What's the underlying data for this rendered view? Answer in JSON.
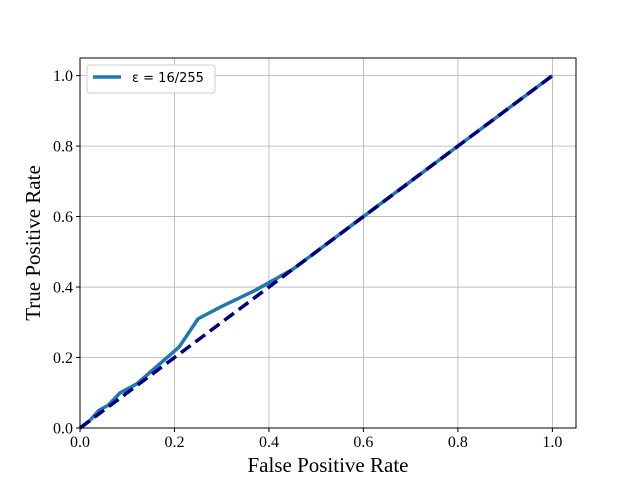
{
  "chart_data": {
    "type": "line",
    "xlabel": "False Positive Rate",
    "ylabel": "True Positive Rate",
    "xlim": [
      0.0,
      1.05
    ],
    "ylim": [
      0.0,
      1.05
    ],
    "xticks": [
      "0.0",
      "0.2",
      "0.4",
      "0.6",
      "0.8",
      "1.0"
    ],
    "yticks": [
      "0.0",
      "0.2",
      "0.4",
      "0.6",
      "0.8",
      "1.0"
    ],
    "grid": true,
    "legend": {
      "placement": "top-left",
      "entries": [
        "ε = 16/255"
      ]
    },
    "series": [
      {
        "name": "ε = 16/255",
        "color": "#1f77b4",
        "style": "solid",
        "x": [
          0.0,
          0.02,
          0.04,
          0.06,
          0.085,
          0.12,
          0.15,
          0.21,
          0.25,
          0.3,
          0.37,
          0.45,
          0.48,
          0.55,
          0.6,
          0.7,
          0.8,
          0.9,
          1.0
        ],
        "y": [
          0.0,
          0.02,
          0.05,
          0.065,
          0.1,
          0.125,
          0.16,
          0.23,
          0.31,
          0.345,
          0.39,
          0.45,
          0.48,
          0.55,
          0.6,
          0.7,
          0.8,
          0.9,
          1.0
        ]
      },
      {
        "color": "#000080",
        "style": "dashed",
        "x": [
          0.0,
          1.0
        ],
        "y": [
          0.0,
          1.0
        ]
      }
    ]
  }
}
